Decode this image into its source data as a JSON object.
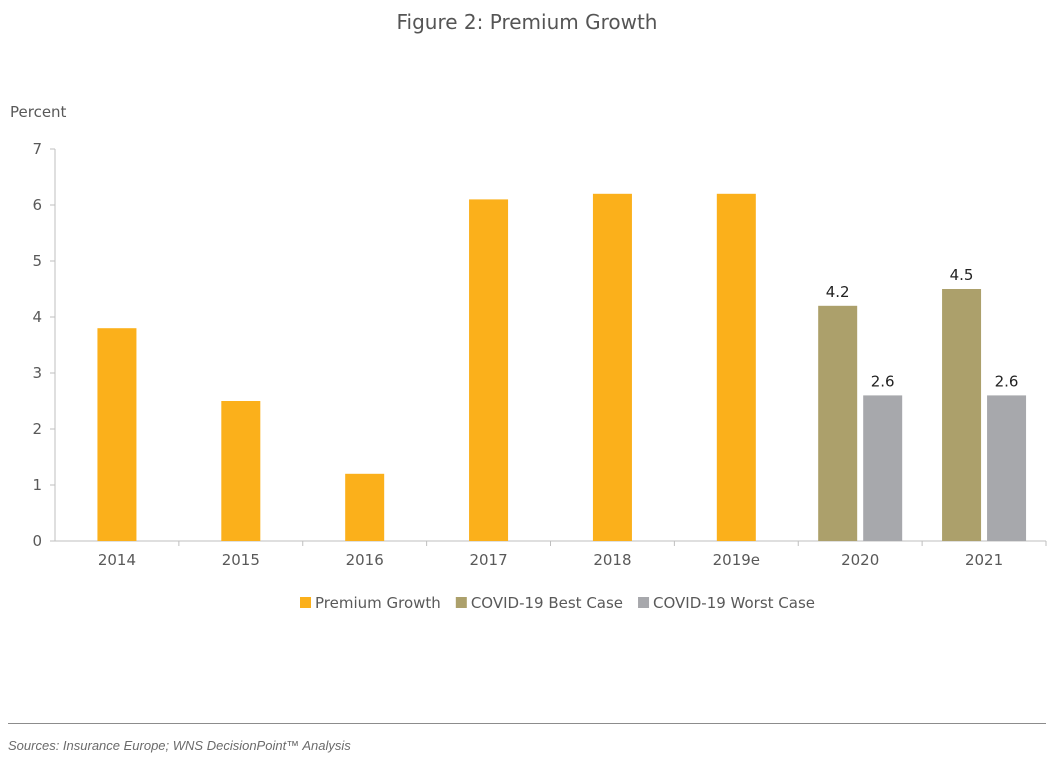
{
  "chart_data": {
    "type": "bar",
    "title": "Figure 2: Premium Growth",
    "ylabel": "Percent",
    "xlabel": "",
    "ylim": [
      0,
      7
    ],
    "yticks": [
      0,
      1,
      2,
      3,
      4,
      5,
      6,
      7
    ],
    "categories": [
      "2014",
      "2015",
      "2016",
      "2017",
      "2018",
      "2019e",
      "2020",
      "2021"
    ],
    "series": [
      {
        "name": "Premium Growth",
        "color": "#FBB01B",
        "values": [
          3.8,
          2.5,
          1.2,
          6.1,
          6.2,
          6.2,
          null,
          null
        ]
      },
      {
        "name": "COVID-19 Best Case",
        "color": "#ACA06B",
        "values": [
          null,
          null,
          null,
          null,
          null,
          null,
          4.2,
          4.5
        ]
      },
      {
        "name": "COVID-19 Worst Case",
        "color": "#A7A8AC",
        "values": [
          null,
          null,
          null,
          null,
          null,
          null,
          2.6,
          2.6
        ]
      }
    ],
    "data_labels": {
      "COVID-19 Best Case": [
        "4.2",
        "4.5"
      ],
      "COVID-19 Worst Case": [
        "2.6",
        "2.6"
      ]
    },
    "grid": false,
    "legend_position": "bottom"
  },
  "footer": {
    "source": "Sources: Insurance Europe; WNS DecisionPoint™ Analysis"
  }
}
